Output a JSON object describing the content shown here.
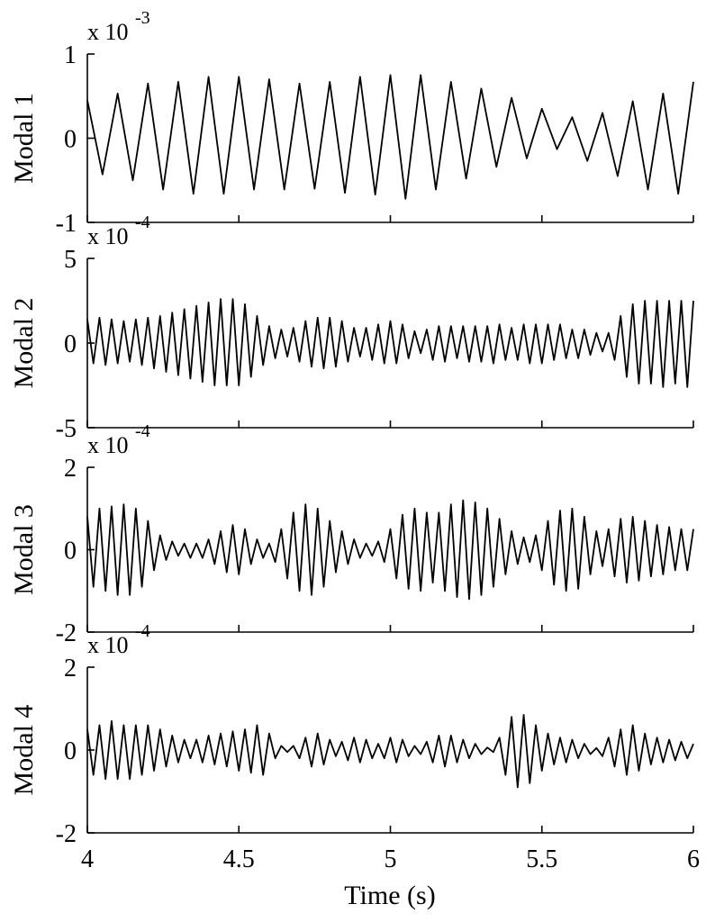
{
  "chart_data": {
    "type": "line",
    "xlabel": "Time (s)",
    "xlim": [
      4,
      6
    ],
    "xticks": [
      4,
      4.5,
      5,
      5.5,
      6
    ],
    "x": [
      4,
      4.02,
      4.04,
      4.06,
      4.08,
      4.1,
      4.12,
      4.14,
      4.16,
      4.18,
      4.2,
      4.22,
      4.24,
      4.26,
      4.28,
      4.3,
      4.32,
      4.34,
      4.36,
      4.38,
      4.4,
      4.42,
      4.44,
      4.46,
      4.48,
      4.5,
      4.52,
      4.54,
      4.56,
      4.58,
      4.6,
      4.62,
      4.64,
      4.66,
      4.68,
      4.7,
      4.72,
      4.74,
      4.76,
      4.78,
      4.8,
      4.82,
      4.84,
      4.86,
      4.88,
      4.9,
      4.92,
      4.94,
      4.96,
      4.98,
      5,
      5.02,
      5.04,
      5.06,
      5.08,
      5.1,
      5.12,
      5.14,
      5.16,
      5.18,
      5.2,
      5.22,
      5.24,
      5.26,
      5.28,
      5.3,
      5.32,
      5.34,
      5.36,
      5.38,
      5.4,
      5.42,
      5.44,
      5.46,
      5.48,
      5.5,
      5.52,
      5.54,
      5.56,
      5.58,
      5.6,
      5.62,
      5.64,
      5.66,
      5.68,
      5.7,
      5.72,
      5.74,
      5.76,
      5.78,
      5.8,
      5.82,
      5.84,
      5.86,
      5.88,
      5.9,
      5.92,
      5.94,
      5.96,
      5.98,
      6
    ],
    "series": [
      {
        "name": "Modal 1",
        "color": "#000000",
        "scale_base": "x 10",
        "scale_exp": "-3",
        "ylim": [
          -1,
          1
        ],
        "yticks": [
          -1,
          0,
          1
        ],
        "x": [
          4,
          4.05,
          4.1,
          4.15,
          4.2,
          4.25,
          4.3,
          4.35,
          4.4,
          4.45,
          4.5,
          4.55,
          4.6,
          4.65,
          4.7,
          4.75,
          4.8,
          4.85,
          4.9,
          4.95,
          5,
          5.05,
          5.1,
          5.15,
          5.2,
          5.25,
          5.3,
          5.35,
          5.4,
          5.45,
          5.5,
          5.55,
          5.6,
          5.65,
          5.7,
          5.75,
          5.8,
          5.85,
          5.9,
          5.95,
          6
        ],
        "values": [
          0.45,
          -0.43,
          0.53,
          -0.5,
          0.65,
          -0.61,
          0.67,
          -0.66,
          0.73,
          -0.66,
          0.73,
          -0.61,
          0.7,
          -0.61,
          0.65,
          -0.6,
          0.67,
          -0.65,
          0.73,
          -0.67,
          0.75,
          -0.72,
          0.75,
          -0.61,
          0.67,
          -0.48,
          0.59,
          -0.34,
          0.48,
          -0.24,
          0.35,
          -0.13,
          0.25,
          -0.27,
          0.3,
          -0.45,
          0.44,
          -0.61,
          0.53,
          -0.66,
          0.67
        ]
      },
      {
        "name": "Modal 2",
        "color": "#000000",
        "scale_base": "x 10",
        "scale_exp": "-4",
        "ylim": [
          -5,
          5
        ],
        "yticks": [
          -5,
          0,
          5
        ],
        "values": [
          1.4,
          -1.2,
          1.5,
          -1.3,
          1.4,
          -1.2,
          1.3,
          -1.1,
          1.4,
          -1.3,
          1.5,
          -1.5,
          1.6,
          -1.7,
          1.8,
          -1.9,
          2.0,
          -2.1,
          2.2,
          -2.3,
          2.4,
          -2.5,
          2.6,
          -2.5,
          2.6,
          -2.5,
          2.3,
          -2.0,
          1.6,
          -1.3,
          1.0,
          -0.9,
          0.8,
          -0.8,
          0.9,
          -1.1,
          1.3,
          -1.4,
          1.5,
          -1.5,
          1.5,
          -1.4,
          1.3,
          -1.1,
          0.9,
          -0.8,
          0.9,
          -1.0,
          1.1,
          -1.2,
          1.3,
          -1.2,
          1.1,
          -0.9,
          0.7,
          -0.6,
          0.8,
          -1.0,
          1.0,
          -1.1,
          1.0,
          -0.9,
          1.0,
          -1.1,
          1.0,
          -1.1,
          1.0,
          -1.2,
          1.1,
          -1.0,
          0.9,
          -1.0,
          1.1,
          -1.2,
          1.1,
          -1.2,
          1.1,
          -1.0,
          1.1,
          -0.9,
          0.8,
          -0.9,
          0.8,
          -0.7,
          0.6,
          -0.5,
          0.6,
          -1.0,
          1.6,
          -2.0,
          2.3,
          -2.4,
          2.5,
          -2.4,
          2.5,
          -2.6,
          2.5,
          -2.4,
          2.5,
          -2.6,
          2.5
        ]
      },
      {
        "name": "Modal 3",
        "color": "#000000",
        "scale_base": "x 10",
        "scale_exp": "-4",
        "ylim": [
          -2,
          2
        ],
        "yticks": [
          -2,
          0,
          2
        ],
        "values": [
          0.8,
          -0.9,
          1.0,
          -1.0,
          1.05,
          -1.1,
          1.1,
          -1.1,
          1.0,
          -0.9,
          0.7,
          -0.5,
          0.35,
          -0.25,
          0.2,
          -0.15,
          0.15,
          -0.2,
          0.15,
          -0.2,
          0.25,
          -0.35,
          0.45,
          -0.55,
          0.6,
          -0.6,
          0.5,
          -0.35,
          0.25,
          -0.2,
          0.15,
          -0.3,
          0.5,
          -0.7,
          0.9,
          -1.0,
          1.1,
          -1.1,
          1.0,
          -0.9,
          0.7,
          -0.55,
          0.45,
          -0.35,
          0.25,
          -0.2,
          0.15,
          -0.15,
          0.2,
          -0.3,
          0.5,
          -0.7,
          0.85,
          -0.95,
          1.0,
          -1.0,
          0.9,
          -0.8,
          0.9,
          -1.0,
          1.1,
          -1.15,
          1.2,
          -1.2,
          1.15,
          -1.1,
          1.0,
          -0.9,
          0.75,
          -0.6,
          0.45,
          -0.35,
          0.3,
          -0.3,
          0.35,
          -0.5,
          0.7,
          -0.85,
          0.95,
          -1.0,
          1.0,
          -0.95,
          0.8,
          -0.6,
          0.45,
          -0.4,
          0.5,
          -0.65,
          0.75,
          -0.8,
          0.8,
          -0.75,
          0.7,
          -0.65,
          0.6,
          -0.6,
          0.55,
          -0.5,
          0.5,
          -0.5,
          0.5
        ]
      },
      {
        "name": "Modal 4",
        "color": "#000000",
        "scale_base": "x 10",
        "scale_exp": "-4",
        "ylim": [
          -2,
          2
        ],
        "yticks": [
          -2,
          0,
          2
        ],
        "values": [
          0.5,
          -0.6,
          0.6,
          -0.7,
          0.7,
          -0.7,
          0.6,
          -0.7,
          0.6,
          -0.6,
          0.6,
          -0.5,
          0.5,
          -0.4,
          0.35,
          -0.3,
          0.25,
          -0.2,
          0.25,
          -0.3,
          0.35,
          -0.35,
          0.4,
          -0.4,
          0.45,
          -0.5,
          0.5,
          -0.55,
          0.6,
          -0.6,
          0.4,
          -0.2,
          0.1,
          -0.05,
          0.1,
          -0.2,
          0.3,
          -0.4,
          0.4,
          -0.35,
          0.25,
          -0.15,
          0.2,
          -0.25,
          0.3,
          -0.3,
          0.25,
          -0.2,
          0.15,
          -0.2,
          0.3,
          -0.3,
          0.25,
          -0.15,
          0.1,
          -0.1,
          0.2,
          -0.3,
          0.35,
          -0.4,
          0.35,
          -0.3,
          0.25,
          -0.2,
          0.15,
          -0.1,
          0.06,
          -0.05,
          0.3,
          -0.6,
          0.8,
          -0.9,
          0.85,
          -0.8,
          0.6,
          -0.5,
          0.4,
          -0.35,
          0.3,
          -0.3,
          0.25,
          -0.2,
          0.15,
          -0.1,
          0.05,
          -0.15,
          0.3,
          -0.4,
          0.5,
          -0.6,
          0.6,
          -0.5,
          0.4,
          -0.35,
          0.3,
          -0.3,
          0.25,
          -0.25,
          0.2,
          -0.2,
          0.15
        ]
      }
    ]
  }
}
